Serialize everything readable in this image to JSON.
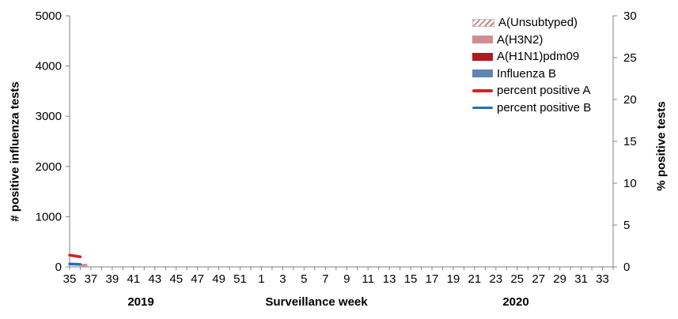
{
  "chart_data": {
    "type": "bar",
    "subtype": "dual-axis stacked bars with percent-positive lines",
    "title": "",
    "x_axis": {
      "label": "Surveillance week",
      "tick_labels": [
        "35",
        "37",
        "39",
        "41",
        "43",
        "45",
        "47",
        "49",
        "51",
        "1",
        "3",
        "5",
        "7",
        "9",
        "11",
        "13",
        "15",
        "17",
        "19",
        "21",
        "23",
        "25",
        "27",
        "29",
        "31",
        "33"
      ],
      "weeks_start": 35,
      "total_week_positions": 52,
      "year_left": "2019",
      "year_right": "2020"
    },
    "left_axis": {
      "label": "# positive influenza tests",
      "min": 0,
      "max": 5000,
      "ticks": [
        0,
        1000,
        2000,
        3000,
        4000,
        5000
      ]
    },
    "right_axis": {
      "label": "% positive tests",
      "min": 0,
      "max": 30,
      "ticks": [
        0,
        5,
        10,
        15,
        20,
        25,
        30
      ]
    },
    "legend": [
      {
        "label": "A(Unsubtyped)",
        "type": "hatch",
        "color": "#c5858a"
      },
      {
        "label": "A(H3N2)",
        "type": "solid",
        "color": "#d08e91"
      },
      {
        "label": "A(H1N1)pdm09",
        "type": "solid",
        "color": "#b01b20"
      },
      {
        "label": "Influenza B",
        "type": "solid",
        "color": "#5e86b4"
      },
      {
        "label": "percent positive A",
        "type": "line",
        "color": "#dc1f21"
      },
      {
        "label": "percent positive B",
        "type": "line",
        "color": "#2273b0"
      }
    ],
    "bar_series": [
      {
        "name": "A(Unsubtyped)",
        "color": "#c5858a",
        "points": []
      },
      {
        "name": "A(H3N2)",
        "color": "#d08e91",
        "points": [
          {
            "week": 36,
            "value": 60
          }
        ]
      },
      {
        "name": "A(H1N1)pdm09",
        "color": "#b01b20",
        "points": []
      },
      {
        "name": "Influenza B",
        "color": "#5e86b4",
        "points": []
      }
    ],
    "line_series": [
      {
        "name": "percent positive A",
        "axis": "right",
        "color": "#dc1f21",
        "points": [
          {
            "week": 35,
            "value": 1.4
          },
          {
            "week": 36,
            "value": 1.2
          }
        ]
      },
      {
        "name": "percent positive B",
        "axis": "right",
        "color": "#2273b0",
        "points": [
          {
            "week": 35,
            "value": 0.35
          },
          {
            "week": 36,
            "value": 0.3
          }
        ]
      }
    ],
    "style_colors": {
      "axis": "#808080",
      "text": "#000000"
    }
  }
}
